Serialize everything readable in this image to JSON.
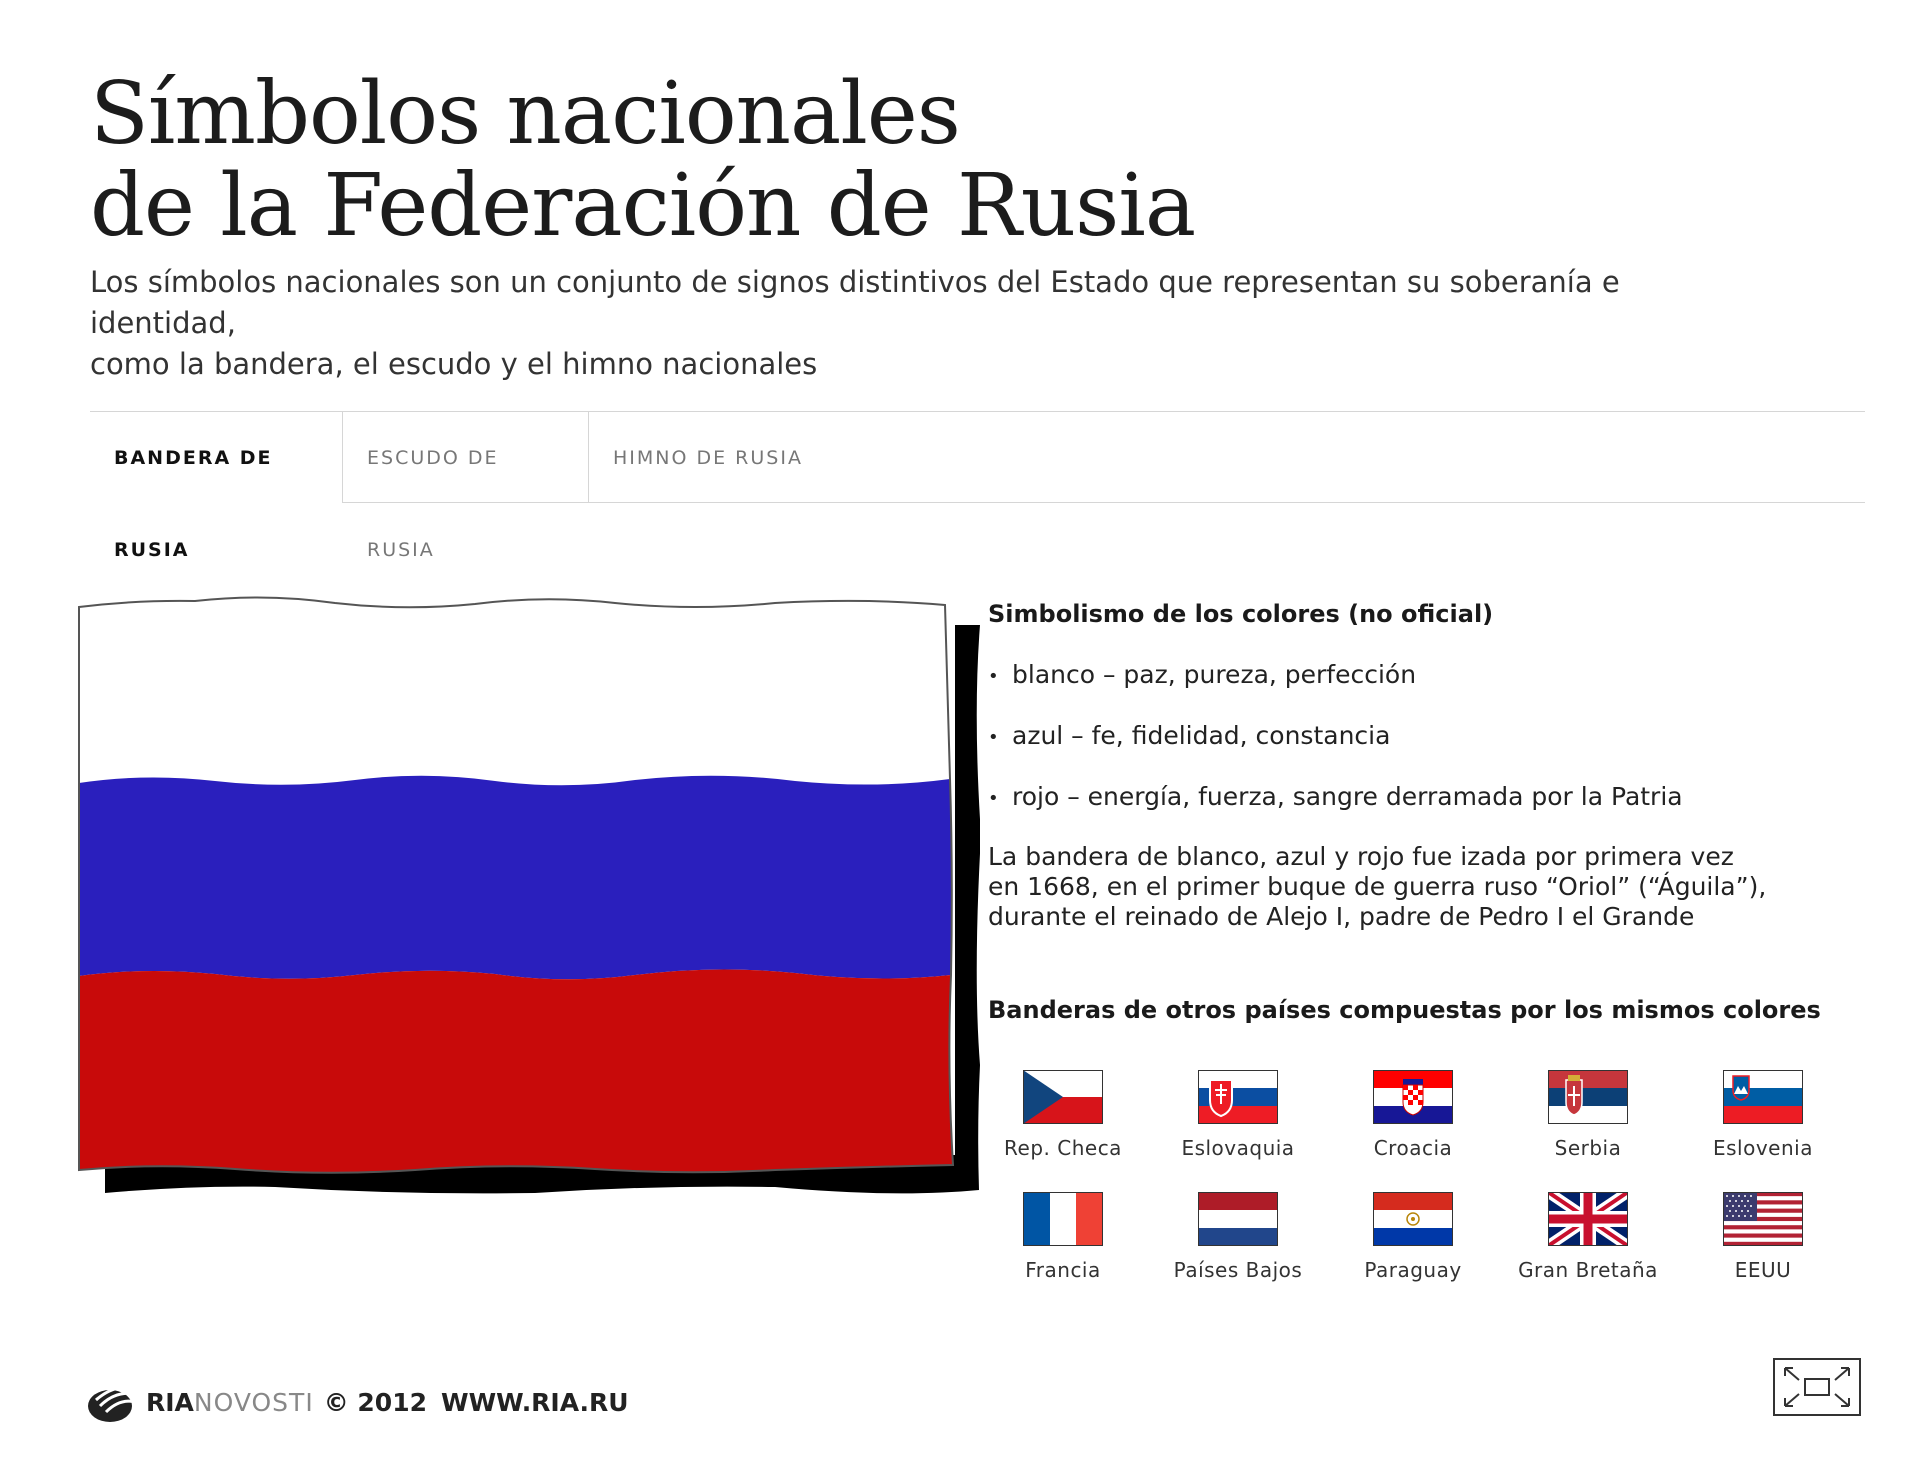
{
  "header": {
    "title_line1": "Símbolos nacionales",
    "title_line2": "de la Federación de Rusia",
    "subtitle_line1": "Los símbolos nacionales son un conjunto de signos distintivos del Estado que representan su soberanía e identidad,",
    "subtitle_line2": "como la bandera, el escudo y el himno nacionales"
  },
  "tabs": [
    {
      "label": "BANDERA DE RUSIA",
      "active": true
    },
    {
      "label": "ESCUDO DE RUSIA",
      "active": false
    },
    {
      "label": "HIMNO DE RUSIA",
      "active": false
    }
  ],
  "flag": {
    "colors": {
      "white": "#ffffff",
      "blue": "#2a1fbd",
      "red": "#c80a0a",
      "shadow": "#000000"
    }
  },
  "info": {
    "heading": "Simbolismo de los colores (no oficial)",
    "bullets": [
      "blanco – paz, pureza, perfección",
      "azul – fe, fidelidad, constancia",
      "rojo – energía, fuerza, sangre derramada por la Patria"
    ],
    "paragraph_lines": [
      "La bandera de blanco, azul y rojo fue izada por primera vez",
      "en 1668, en el primer buque de guerra ruso “Oriol” (“Águila”),",
      "durante el reinado de Alejo I, padre de Pedro I el Grande"
    ],
    "other_heading": "Banderas de otros países compuestas por los mismos colores"
  },
  "countries": [
    {
      "name": "Rep. Checa",
      "icon": "czech-flag-icon"
    },
    {
      "name": "Eslovaquia",
      "icon": "slovakia-flag-icon"
    },
    {
      "name": "Croacia",
      "icon": "croatia-flag-icon"
    },
    {
      "name": "Serbia",
      "icon": "serbia-flag-icon"
    },
    {
      "name": "Eslovenia",
      "icon": "slovenia-flag-icon"
    },
    {
      "name": "Francia",
      "icon": "france-flag-icon"
    },
    {
      "name": "Países Bajos",
      "icon": "netherlands-flag-icon"
    },
    {
      "name": "Paraguay",
      "icon": "paraguay-flag-icon"
    },
    {
      "name": "Gran Bretaña",
      "icon": "uk-flag-icon"
    },
    {
      "name": "EEUU",
      "icon": "usa-flag-icon"
    }
  ],
  "footer": {
    "brand_ria": "RIA",
    "brand_novosti": "NOVOSTI",
    "copyright": "© 2012",
    "url": "WWW.RIA.RU",
    "icons": [
      "ria-logo-icon",
      "expand-icon"
    ]
  }
}
